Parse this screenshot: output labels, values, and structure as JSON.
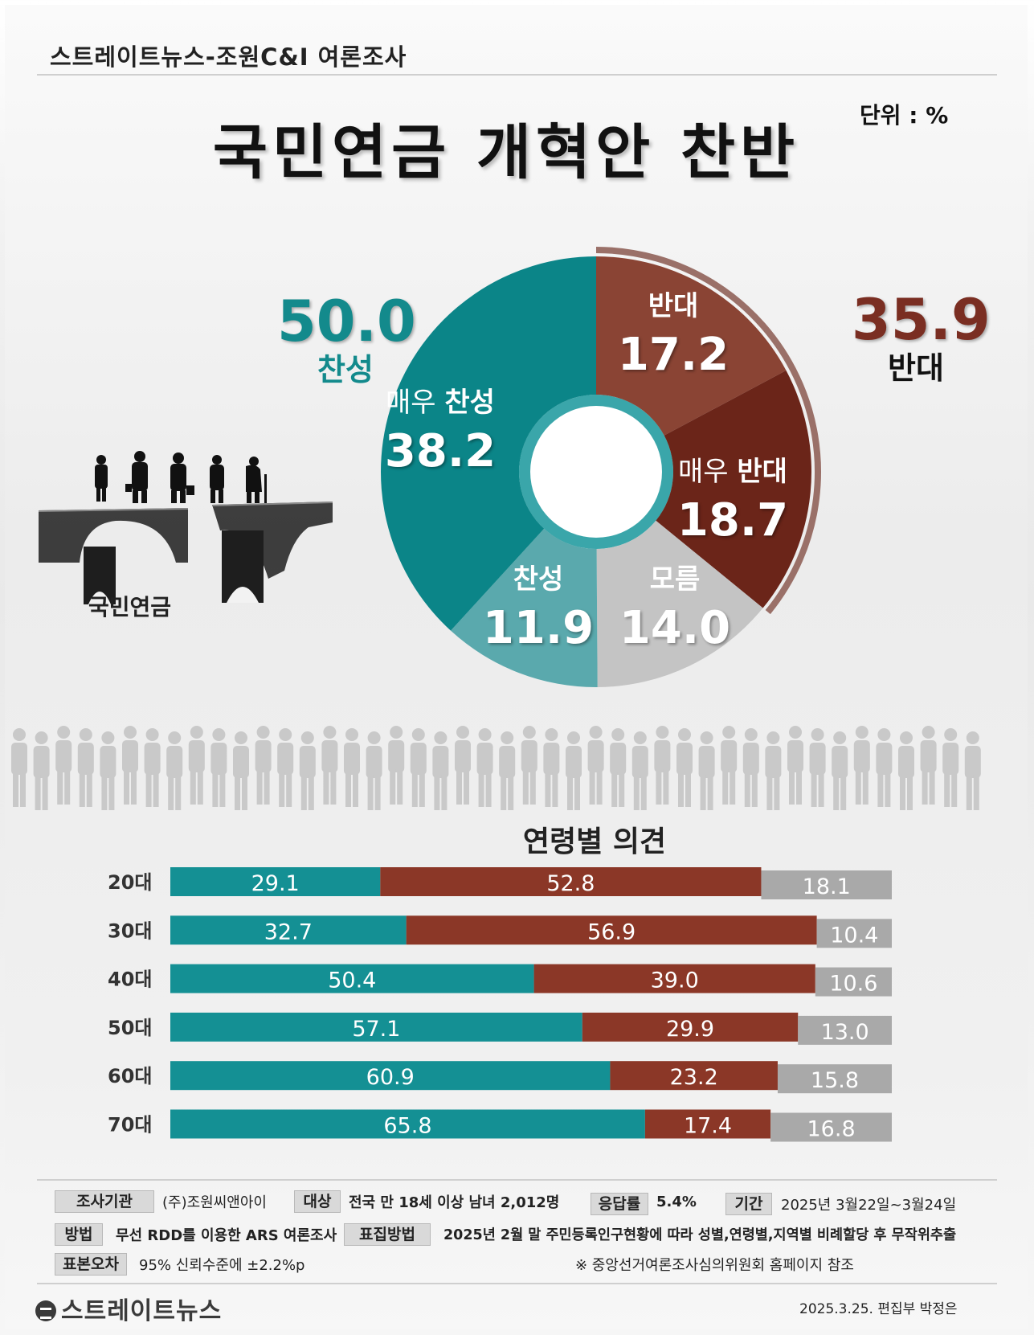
{
  "header": {
    "source": "스트레이트뉴스-조원C&I 여론조사",
    "title": "국민연금 개혁안 찬반",
    "unit": "단위 : %"
  },
  "summary": {
    "support": {
      "value": "50.0",
      "label": "찬성",
      "color": "#138a8c"
    },
    "oppose": {
      "value": "35.9",
      "label": "반대",
      "color": "#7a2e22"
    }
  },
  "image_caption": "국민연금",
  "chart_data": [
    {
      "type": "pie",
      "donut": true,
      "slices": [
        {
          "label": "반대",
          "value": 17.2,
          "color": "#8a4434"
        },
        {
          "label": "매우 반대",
          "value": 18.7,
          "color": "#6b2519"
        },
        {
          "label": "모름",
          "value": 14.0,
          "color": "#c4c4c4"
        },
        {
          "label": "찬성",
          "value": 11.9,
          "color": "#5aa9ad"
        },
        {
          "label": "매우 찬성",
          "value": 38.2,
          "color": "#0b8588"
        }
      ],
      "slice_labels": [
        {
          "prefix": "",
          "strong": "반대",
          "value": "17.2"
        },
        {
          "prefix": "매우 ",
          "strong": "반대",
          "value": "18.7"
        },
        {
          "prefix": "",
          "strong": "모름",
          "value": "14.0"
        },
        {
          "prefix": "",
          "strong": "찬성",
          "value": "11.9"
        },
        {
          "prefix": "매우 ",
          "strong": "찬성",
          "value": "38.2"
        }
      ]
    },
    {
      "type": "bar",
      "orientation": "horizontal",
      "stacked": true,
      "title": "연령별 의견",
      "categories": [
        "20대",
        "30대",
        "40대",
        "50대",
        "60대",
        "70대"
      ],
      "series": [
        {
          "values": [
            29.1,
            32.7,
            50.4,
            57.1,
            60.9,
            65.8
          ],
          "color": "#149094"
        },
        {
          "values": [
            52.8,
            56.9,
            39.0,
            29.9,
            23.2,
            17.4
          ],
          "color": "#8b3727"
        },
        {
          "values": [
            18.1,
            10.4,
            10.6,
            13.0,
            15.8,
            16.8
          ],
          "color": "#a9a9a9"
        }
      ],
      "value_labels": [
        [
          "29.1",
          "52.8",
          "18.1"
        ],
        [
          "32.7",
          "56.9",
          "10.4"
        ],
        [
          "50.4",
          "39.0",
          "10.6"
        ],
        [
          "57.1",
          "29.9",
          "13.0"
        ],
        [
          "60.9",
          "23.2",
          "15.8"
        ],
        [
          "65.8",
          "17.4",
          "16.8"
        ]
      ]
    }
  ],
  "footer": {
    "agency_tag": "조사기관",
    "agency": "(주)조원씨앤아이",
    "target_tag": "대상",
    "target": "전국 만 18세 이상 남녀 2,012명",
    "response_tag": "응답률",
    "response": "5.4%",
    "period_tag": "기간",
    "period": "2025년 3월22일~3월24일",
    "method_tag": "방법",
    "method": "무선 RDD를 이용한 ARS 여론조사",
    "sampling_tag": "표집방법",
    "sampling": "2025년 2월 말 주민등록인구현황에 따라 성별,연령별,지역별 비례할당 후 무작위추출",
    "error_tag": "표본오차",
    "error": "95% 신뢰수준에 ±2.2%p",
    "note": "※ 중앙선거여론조사심의위원회 홈페이지 참조",
    "logo": "스트레이트뉴스",
    "credit": "2025.3.25. 편집부 박정은"
  }
}
